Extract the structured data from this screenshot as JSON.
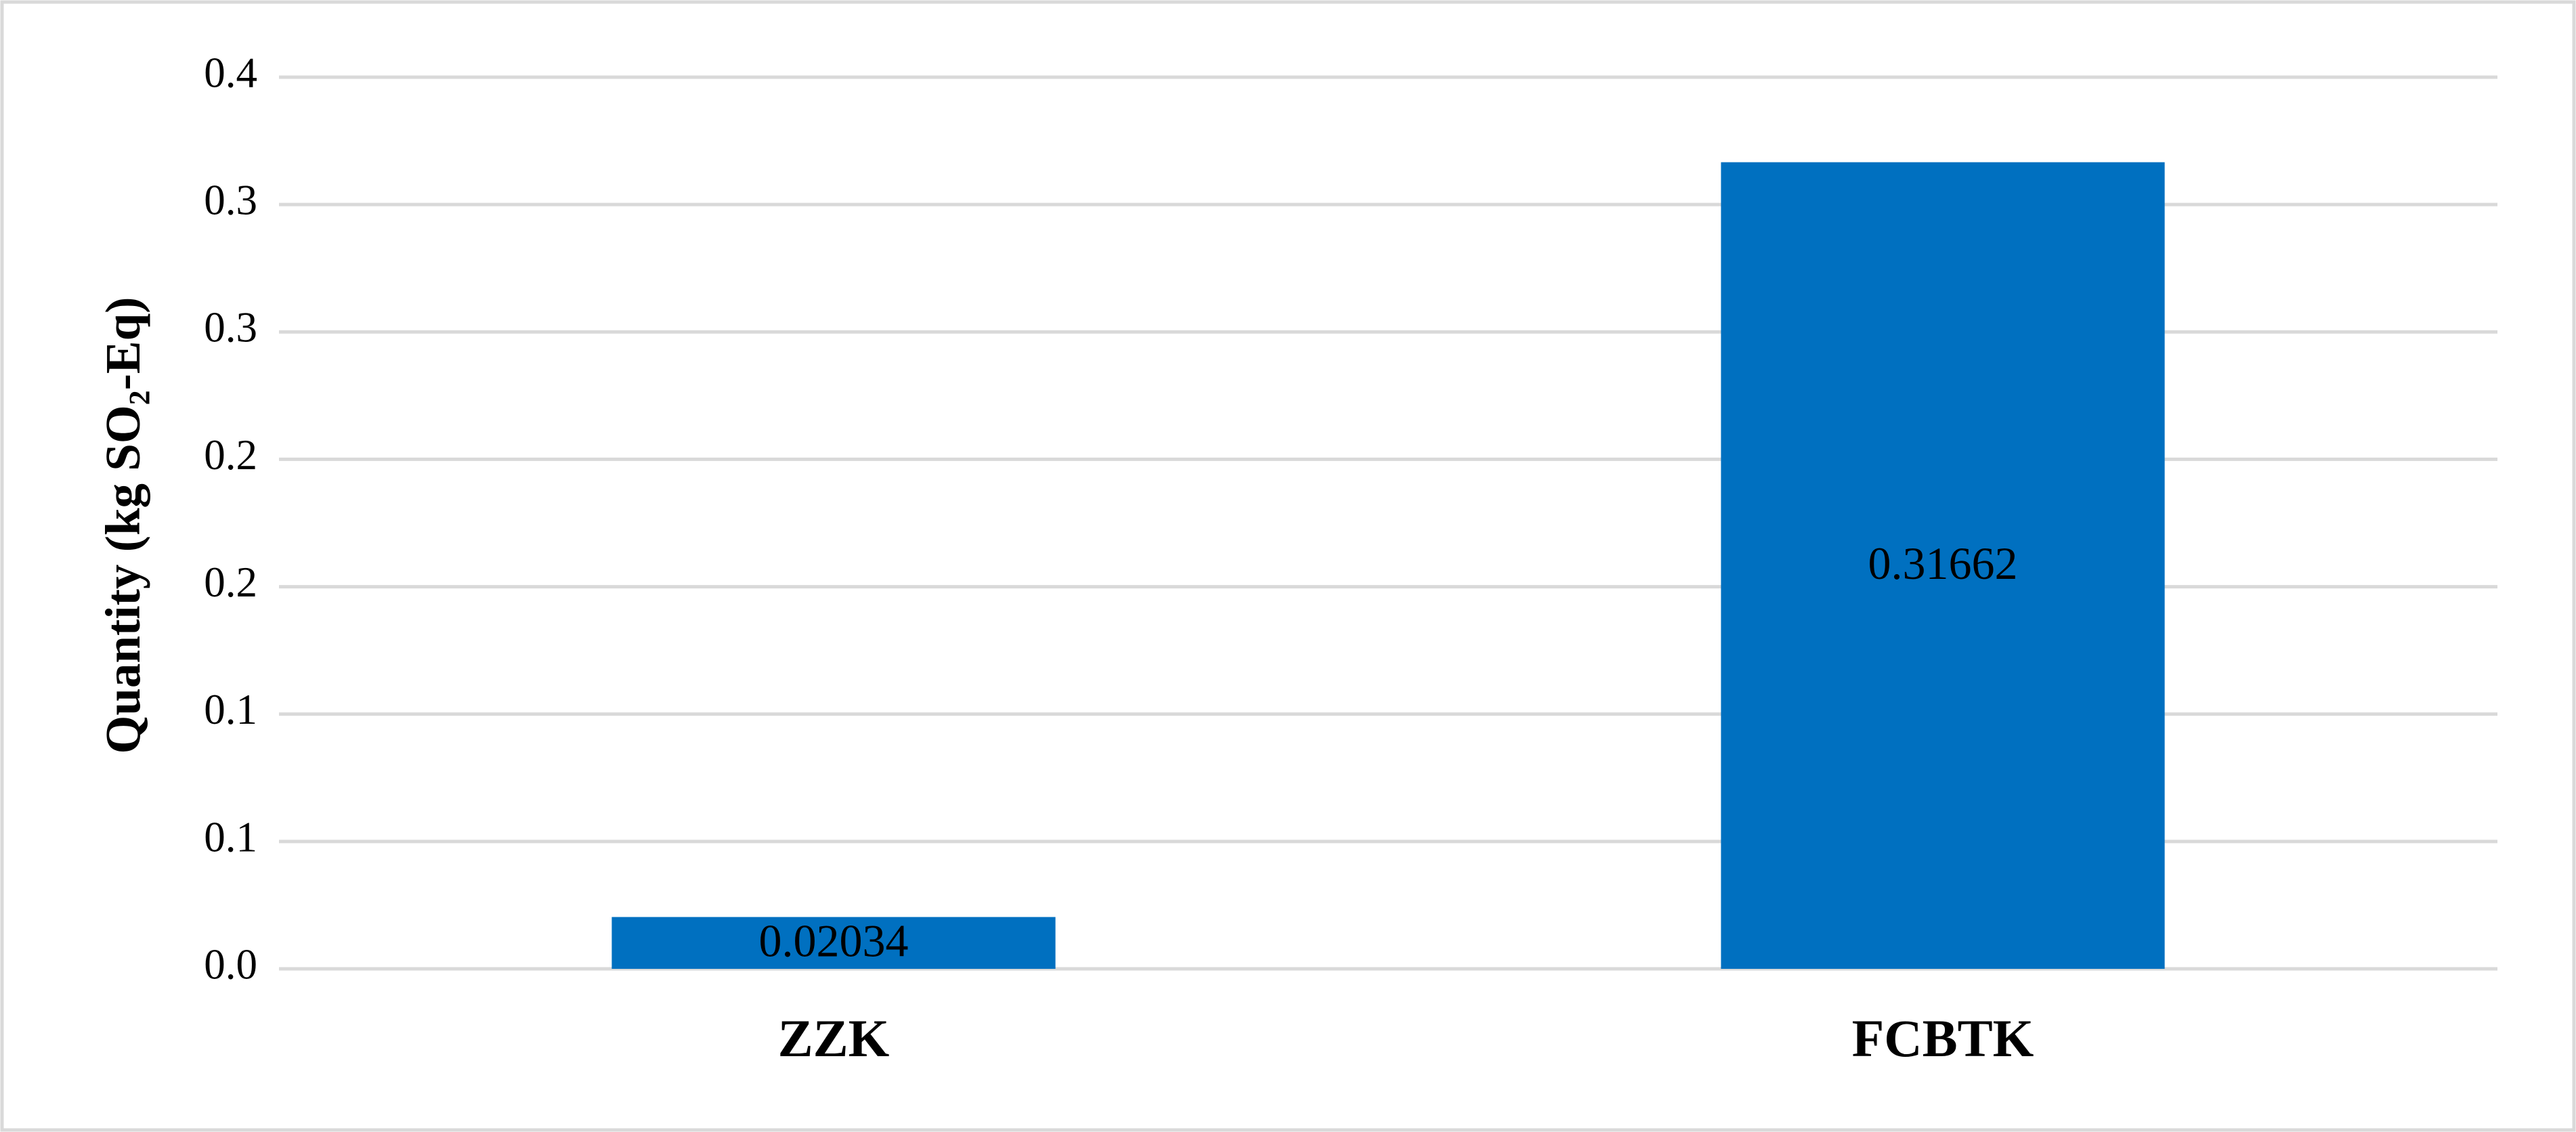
{
  "chart_data": {
    "type": "bar",
    "y_label": "Quantity (kg SO₂-Eq)",
    "categories": [
      "ZZK",
      "FCBTK"
    ],
    "values": [
      0.02034,
      0.31662
    ],
    "color": "#0070c0",
    "ylim": [
      0,
      0.35
    ],
    "yticks": [
      {
        "value": 0,
        "label": "0.0"
      },
      {
        "value": 0.05,
        "label": "0.1"
      },
      0.1,
      {
        "value": 0.15,
        "label": "0.2"
      },
      0.2,
      {
        "value": 0.25,
        "label": "0.3"
      },
      0.3,
      {
        "value": 0.35,
        "label": "0.4"
      }
    ],
    "grid": true
  }
}
